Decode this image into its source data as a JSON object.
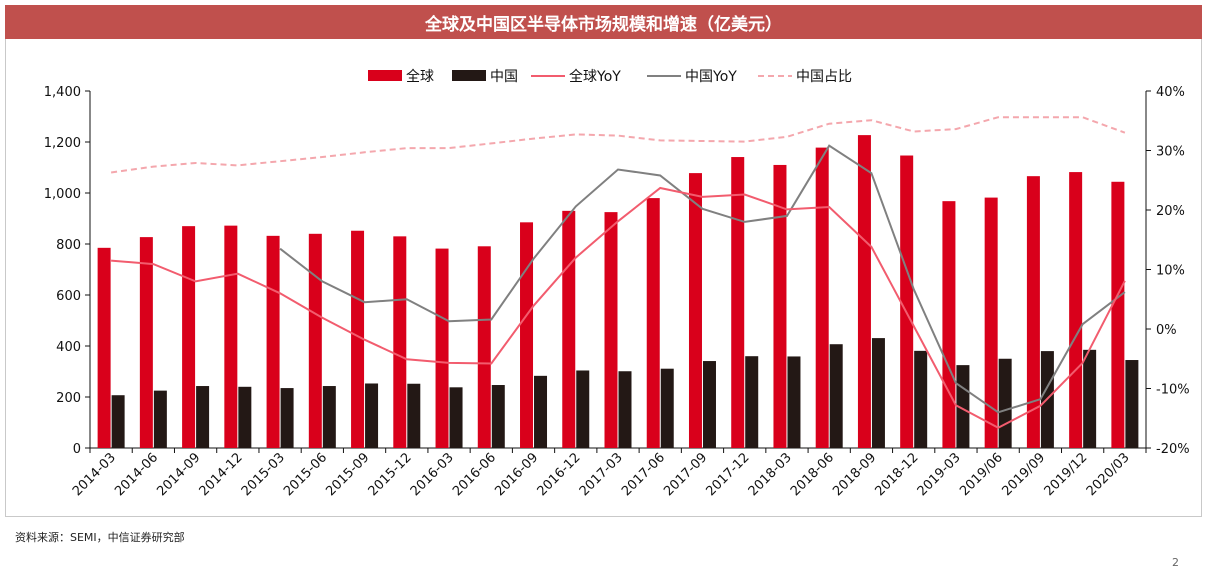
{
  "title": "全球及中国区半导体市场规模和增速（亿美元）",
  "source": "资料来源：SEMI，中信证券研究部",
  "page_number": "2",
  "colors": {
    "title_bg": "#c0504d",
    "global_bar": "#d9001b",
    "china_bar": "#231815",
    "global_yoy": "#f25c6e",
    "china_yoy": "#808080",
    "china_share": "#f4a7ad"
  },
  "chart_data": {
    "type": "bar",
    "categories": [
      "2014-03",
      "2014-06",
      "2014-09",
      "2014-12",
      "2015-03",
      "2015-06",
      "2015-09",
      "2015-12",
      "2016-03",
      "2016-06",
      "2016-09",
      "2016-12",
      "2017-03",
      "2017-06",
      "2017-09",
      "2017-12",
      "2018-03",
      "2018-06",
      "2018-09",
      "2018-12",
      "2019-03",
      "2019/06",
      "2019/09",
      "2019/12",
      "2020/03"
    ],
    "series": [
      {
        "name": "全球",
        "type": "bar",
        "axis": "left",
        "values": [
          785,
          827,
          870,
          872,
          832,
          840,
          852,
          830,
          782,
          791,
          885,
          930,
          925,
          980,
          1078,
          1141,
          1110,
          1178,
          1227,
          1147,
          968,
          982,
          1066,
          1082,
          1044
        ]
      },
      {
        "name": "中国",
        "type": "bar",
        "axis": "left",
        "values": [
          207,
          225,
          243,
          240,
          235,
          243,
          253,
          252,
          238,
          247,
          283,
          304,
          301,
          311,
          341,
          360,
          359,
          407,
          431,
          381,
          325,
          350,
          380,
          385,
          345
        ]
      },
      {
        "name": "全球YoY",
        "type": "line",
        "axis": "right",
        "values": [
          11.5,
          10.9,
          8.0,
          9.3,
          6.0,
          1.9,
          -1.8,
          -5.1,
          -5.7,
          -5.8,
          3.9,
          12.0,
          18.1,
          23.7,
          22.2,
          22.6,
          20.1,
          20.5,
          13.8,
          0.5,
          -12.8,
          -16.6,
          -12.9,
          -5.7,
          8.1
        ]
      },
      {
        "name": "中国YoY",
        "type": "line",
        "axis": "right",
        "values": [
          null,
          null,
          null,
          null,
          13.5,
          8.0,
          4.5,
          5.0,
          1.3,
          1.6,
          11.8,
          20.6,
          26.8,
          25.8,
          20.2,
          18.0,
          19.0,
          30.8,
          26.2,
          6.7,
          -9.1,
          -14.0,
          -11.8,
          0.8,
          6.2
        ]
      },
      {
        "name": "中国占比",
        "type": "line",
        "axis": "right",
        "dashed": true,
        "values": [
          26.3,
          27.3,
          27.9,
          27.5,
          28.2,
          28.9,
          29.7,
          30.4,
          30.4,
          31.2,
          32.0,
          32.7,
          32.5,
          31.7,
          31.6,
          31.5,
          32.3,
          34.5,
          35.1,
          33.2,
          33.6,
          35.6,
          35.6,
          35.6,
          33.0
        ]
      }
    ],
    "ylim": [
      0,
      1400
    ],
    "y_ticks": [
      0,
      200,
      400,
      600,
      800,
      1000,
      1200,
      1400
    ],
    "y_tick_labels": [
      "0",
      "200",
      "400",
      "600",
      "800",
      "1,000",
      "1,200",
      "1,400"
    ],
    "y2lim": [
      -20,
      40
    ],
    "y2_ticks": [
      -20,
      -10,
      0,
      10,
      20,
      30,
      40
    ],
    "y2_tick_labels": [
      "-20%",
      "-10%",
      "0%",
      "10%",
      "20%",
      "30%",
      "40%"
    ],
    "legend_position": "top-center",
    "grid": false
  }
}
